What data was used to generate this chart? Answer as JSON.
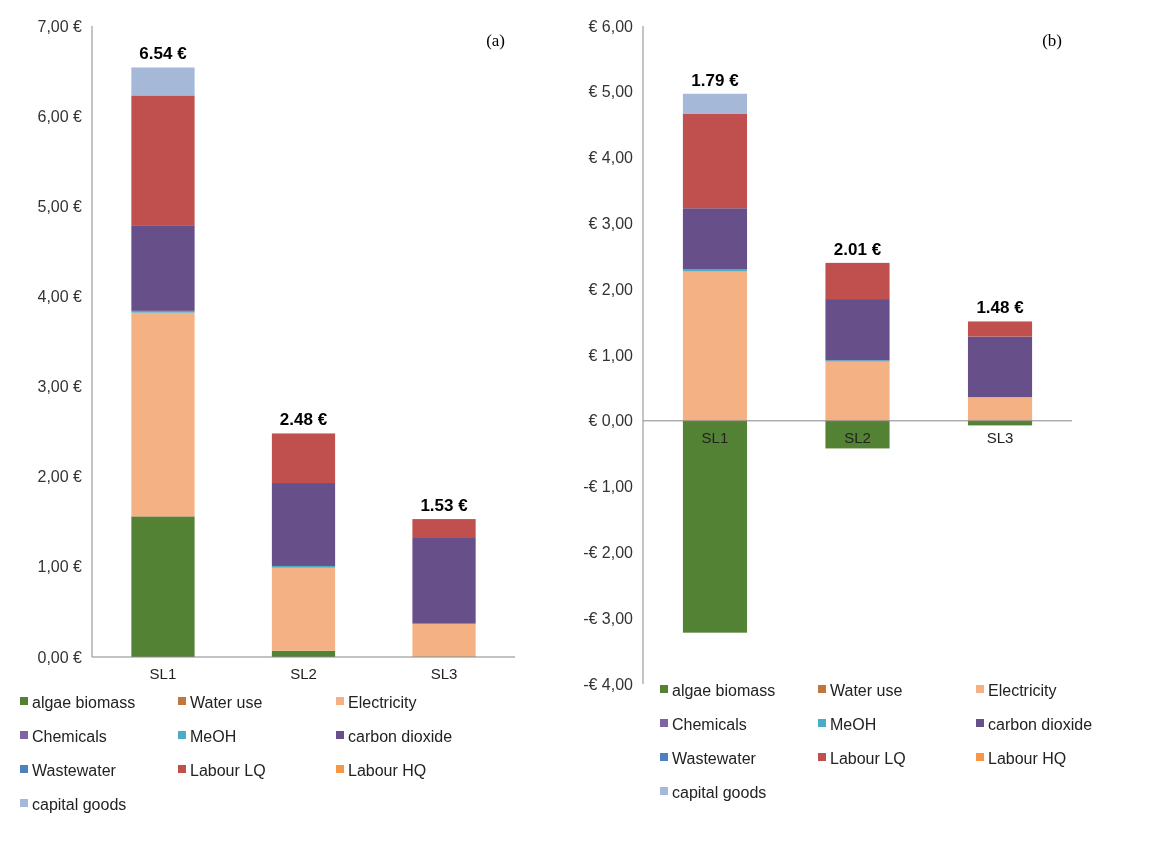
{
  "chart_data": [
    {
      "type": "bar",
      "title": "(a)",
      "stacked": true,
      "categories": [
        "SL1",
        "SL2",
        "SL3"
      ],
      "ylim": [
        0,
        7
      ],
      "yticks": [
        {
          "value": 0,
          "label": "0,00 €"
        },
        {
          "value": 1,
          "label": "1,00 €"
        },
        {
          "value": 2,
          "label": "2,00 €"
        },
        {
          "value": 3,
          "label": "3,00 €"
        },
        {
          "value": 4,
          "label": "4,00 €"
        },
        {
          "value": 5,
          "label": "5,00 €"
        },
        {
          "value": 6,
          "label": "6,00 €"
        },
        {
          "value": 7,
          "label": "7,00 €"
        }
      ],
      "legend": "bottom",
      "totals": [
        "6.54 €",
        "2.48 €",
        "1.53 €"
      ],
      "series": [
        {
          "name": "algae biomass",
          "color": "#548235",
          "values": [
            1.56,
            0.07,
            0
          ]
        },
        {
          "name": "Water use",
          "color": "#c0773e",
          "values": [
            0,
            0,
            0
          ]
        },
        {
          "name": "Electricity",
          "color": "#f4b183",
          "values": [
            2.26,
            0.92,
            0.37
          ]
        },
        {
          "name": "Chemicals",
          "color": "#8064a2",
          "values": [
            0,
            0,
            0
          ]
        },
        {
          "name": "MeOH",
          "color": "#4bacc6",
          "values": [
            0.02,
            0.02,
            0
          ]
        },
        {
          "name": "carbon dioxide",
          "color": "#674f8a",
          "values": [
            0.95,
            0.92,
            0.95
          ]
        },
        {
          "name": "Wastewater",
          "color": "#4f81bd",
          "values": [
            0,
            0,
            0
          ]
        },
        {
          "name": "Labour LQ",
          "color": "#c0504d",
          "values": [
            1.44,
            0.55,
            0.21
          ]
        },
        {
          "name": "Labour HQ",
          "color": "#f79646",
          "values": [
            0,
            0,
            0
          ]
        },
        {
          "name": "capital goods",
          "color": "#a5b8d8",
          "values": [
            0.31,
            0,
            0
          ]
        }
      ]
    },
    {
      "type": "bar",
      "title": "(b)",
      "stacked": true,
      "categories": [
        "SL1",
        "SL2",
        "SL3"
      ],
      "ylim": [
        -4,
        6
      ],
      "yticks": [
        {
          "value": -4,
          "label": "-€ 4,00"
        },
        {
          "value": -3,
          "label": "-€ 3,00"
        },
        {
          "value": -2,
          "label": "-€ 2,00"
        },
        {
          "value": -1,
          "label": "-€ 1,00"
        },
        {
          "value": 0,
          "label": "€ 0,00"
        },
        {
          "value": 1,
          "label": "€ 1,00"
        },
        {
          "value": 2,
          "label": "€ 2,00"
        },
        {
          "value": 3,
          "label": "€ 3,00"
        },
        {
          "value": 4,
          "label": "€ 4,00"
        },
        {
          "value": 5,
          "label": "€ 5,00"
        },
        {
          "value": 6,
          "label": "€ 6,00"
        }
      ],
      "legend": "bottom",
      "totals": [
        "1.79 €",
        "2.01 €",
        "1.48 €"
      ],
      "series": [
        {
          "name": "algae biomass",
          "color": "#548235",
          "values": [
            -3.22,
            -0.42,
            -0.07
          ]
        },
        {
          "name": "Water use",
          "color": "#c0773e",
          "values": [
            0,
            0,
            0
          ]
        },
        {
          "name": "Electricity",
          "color": "#f4b183",
          "values": [
            2.27,
            0.9,
            0.36
          ]
        },
        {
          "name": "Chemicals",
          "color": "#8064a2",
          "values": [
            0,
            0,
            0
          ]
        },
        {
          "name": "MeOH",
          "color": "#4bacc6",
          "values": [
            0.03,
            0.02,
            0
          ]
        },
        {
          "name": "carbon dioxide",
          "color": "#674f8a",
          "values": [
            0.93,
            0.93,
            0.92
          ]
        },
        {
          "name": "Wastewater",
          "color": "#4f81bd",
          "values": [
            0,
            0,
            0
          ]
        },
        {
          "name": "Labour LQ",
          "color": "#c0504d",
          "values": [
            1.44,
            0.55,
            0.23
          ]
        },
        {
          "name": "Labour HQ",
          "color": "#f79646",
          "values": [
            0,
            0,
            0
          ]
        },
        {
          "name": "capital goods",
          "color": "#a5b8d8",
          "values": [
            0.3,
            0,
            0
          ]
        }
      ]
    }
  ]
}
